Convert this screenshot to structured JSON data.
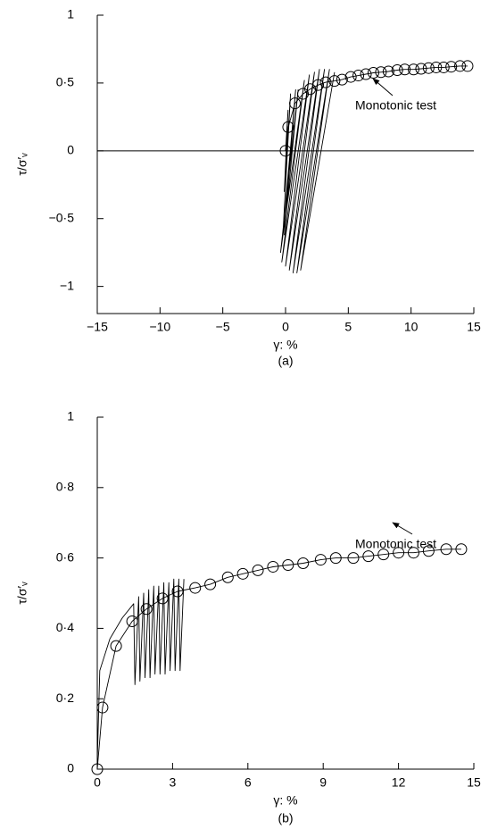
{
  "chart_data": [
    {
      "type": "line",
      "xlabel": "γ: %",
      "ylabel": "τ/σ′ᵥ",
      "caption": "(a)",
      "annotation": "Monotonic test",
      "zero_line": true,
      "xlim": [
        -15,
        15
      ],
      "ylim": [
        -1.2,
        1
      ],
      "xticks": [
        {
          "value": -15,
          "label": "−15"
        },
        {
          "value": -10,
          "label": "−10"
        },
        {
          "value": -5,
          "label": "−5"
        },
        0,
        5,
        10,
        15
      ],
      "yticks": [
        {
          "value": -1,
          "label": "−1"
        },
        {
          "value": -0.5,
          "label": "−0·5"
        },
        0,
        {
          "value": 0.5,
          "label": "0·5"
        },
        1
      ],
      "series": [
        {
          "color": "#000000",
          "marker": "none",
          "x": [
            0,
            0.2,
            -0.1,
            0.4,
            -0.2,
            0.8,
            -0.1,
            1.0,
            -0.4,
            1.5,
            -0.3,
            1.9,
            0.0,
            2.3,
            0.3,
            2.7,
            0.6,
            3.1,
            0.9,
            3.5,
            1.2,
            3.9
          ],
          "values": [
            0,
            0.3,
            -0.3,
            0.42,
            -0.6,
            0.45,
            -0.62,
            0.45,
            -0.75,
            0.52,
            -0.82,
            0.56,
            -0.85,
            0.58,
            -0.88,
            0.6,
            -0.9,
            0.6,
            -0.9,
            0.6,
            -0.88,
            0.58
          ]
        },
        {
          "color": "#000000",
          "marker": "circle",
          "x": [
            0,
            0.21,
            0.75,
            1.39,
            1.96,
            2.6,
            3.2,
            3.9,
            4.5,
            5.2,
            5.8,
            6.4,
            7.0,
            7.6,
            8.2,
            8.9,
            9.5,
            10.2,
            10.8,
            11.4,
            12.0,
            12.6,
            13.2,
            13.9,
            14.5
          ],
          "values": [
            0,
            0.175,
            0.35,
            0.42,
            0.455,
            0.485,
            0.505,
            0.515,
            0.525,
            0.545,
            0.555,
            0.565,
            0.575,
            0.58,
            0.585,
            0.595,
            0.6,
            0.6,
            0.605,
            0.61,
            0.615,
            0.615,
            0.62,
            0.625,
            0.625
          ]
        }
      ]
    },
    {
      "type": "line",
      "xlabel": "γ: %",
      "ylabel": "τ/σ′ᵥ",
      "caption": "(b)",
      "annotation": "Monotonic test",
      "zero_line": false,
      "xlim": [
        0,
        15
      ],
      "ylim": [
        0,
        1
      ],
      "xticks": [
        0,
        3,
        6,
        9,
        12,
        15
      ],
      "yticks": [
        0,
        {
          "value": 0.2,
          "label": "0·2"
        },
        {
          "value": 0.4,
          "label": "0·4"
        },
        {
          "value": 0.6,
          "label": "0·6"
        },
        {
          "value": 0.8,
          "label": "0·8"
        },
        1
      ],
      "series": [
        {
          "color": "#000000",
          "marker": "none",
          "x": [
            0,
            0.1,
            0.5,
            1.0,
            1.45,
            1.5,
            1.65,
            1.7,
            1.85,
            1.9,
            2.05,
            2.1,
            2.25,
            2.3,
            2.45,
            2.5,
            2.65,
            2.7,
            2.85,
            2.9,
            3.05,
            3.1,
            3.25,
            3.3,
            3.45
          ],
          "values": [
            0.02,
            0.28,
            0.37,
            0.43,
            0.47,
            0.24,
            0.49,
            0.25,
            0.5,
            0.26,
            0.51,
            0.26,
            0.52,
            0.27,
            0.52,
            0.27,
            0.53,
            0.27,
            0.53,
            0.28,
            0.54,
            0.28,
            0.54,
            0.28,
            0.54
          ]
        },
        {
          "color": "#000000",
          "marker": "circle",
          "x": [
            0,
            0.21,
            0.75,
            1.39,
            1.96,
            2.6,
            3.2,
            3.9,
            4.5,
            5.2,
            5.8,
            6.4,
            7.0,
            7.6,
            8.2,
            8.9,
            9.5,
            10.2,
            10.8,
            11.4,
            12.0,
            12.6,
            13.2,
            13.9,
            14.5
          ],
          "values": [
            0,
            0.175,
            0.35,
            0.42,
            0.455,
            0.485,
            0.505,
            0.515,
            0.525,
            0.545,
            0.555,
            0.565,
            0.575,
            0.58,
            0.585,
            0.595,
            0.6,
            0.6,
            0.605,
            0.61,
            0.615,
            0.615,
            0.62,
            0.625,
            0.625
          ]
        }
      ]
    }
  ]
}
